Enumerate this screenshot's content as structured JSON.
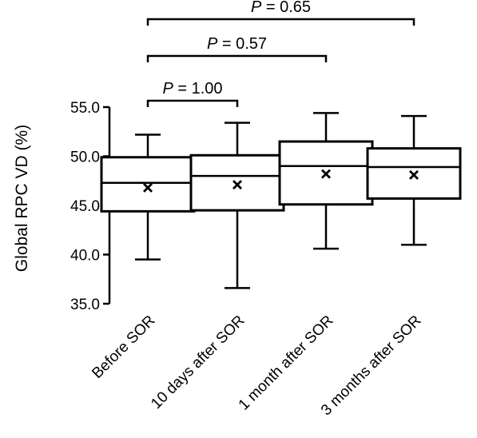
{
  "chart_data": {
    "type": "box",
    "ylabel": "Global RPC VD (%)",
    "xlabel": "",
    "ylim": [
      35.0,
      55.0
    ],
    "yticks": [
      "35.0",
      "40.0",
      "45.0",
      "50.0",
      "55.0"
    ],
    "categories": [
      "Before SOR",
      "10 days after SOR",
      "1 month after SOR",
      "3 months after SOR"
    ],
    "boxes": [
      {
        "min": 39.5,
        "q1": 44.4,
        "median": 47.3,
        "q3": 49.9,
        "max": 52.2,
        "mean": 46.8
      },
      {
        "min": 36.6,
        "q1": 44.5,
        "median": 48.0,
        "q3": 50.1,
        "max": 53.4,
        "mean": 47.1
      },
      {
        "min": 40.6,
        "q1": 45.1,
        "median": 49.0,
        "q3": 51.5,
        "max": 54.4,
        "mean": 48.2
      },
      {
        "min": 41.0,
        "q1": 45.7,
        "median": 48.9,
        "q3": 50.8,
        "max": 54.1,
        "mean": 48.1
      }
    ],
    "comparisons": [
      {
        "from": 0,
        "to": 1,
        "p_prefix": "P",
        "p_text": " = 1.00"
      },
      {
        "from": 0,
        "to": 2,
        "p_prefix": "P",
        "p_text": " = 0.57"
      },
      {
        "from": 0,
        "to": 3,
        "p_prefix": "P",
        "p_text": " = 0.65"
      }
    ]
  }
}
